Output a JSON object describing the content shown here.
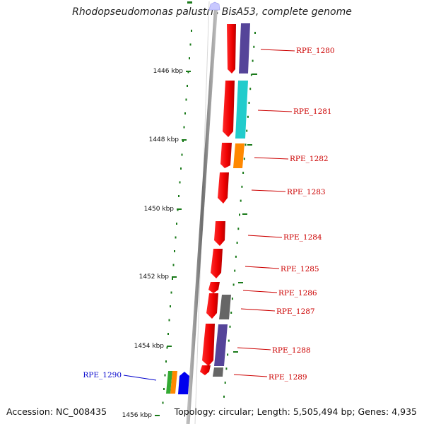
{
  "title": "Rhodopseudomonas palustris BisA53, complete genome",
  "accession": "Accession: NC_008435",
  "summary": "Topology: circular; Length: 5,505,494 bp; Genes: 4,935",
  "ticks": [
    {
      "label": "1446 kbp"
    },
    {
      "label": "1448 kbp"
    },
    {
      "label": "1450 kbp"
    },
    {
      "label": "1452 kbp"
    },
    {
      "label": "1454 kbp"
    },
    {
      "label": "1456 kbp"
    }
  ],
  "genes": [
    {
      "name": "RPE_1280",
      "color": "#cc0000"
    },
    {
      "name": "RPE_1281",
      "color": "#cc0000"
    },
    {
      "name": "RPE_1282",
      "color": "#cc0000"
    },
    {
      "name": "RPE_1283",
      "color": "#cc0000"
    },
    {
      "name": "RPE_1284",
      "color": "#cc0000"
    },
    {
      "name": "RPE_1285",
      "color": "#cc0000"
    },
    {
      "name": "RPE_1286",
      "color": "#cc0000"
    },
    {
      "name": "RPE_1287",
      "color": "#cc0000"
    },
    {
      "name": "RPE_1288",
      "color": "#cc0000"
    },
    {
      "name": "RPE_1289",
      "color": "#cc0000"
    },
    {
      "name": "RPE_1290",
      "color": "#0000cc"
    }
  ],
  "colors": {
    "cds": "#ff0000",
    "tick": "#1a7a1a",
    "backbone": "#888888",
    "cog_purple": "#554499",
    "cog_cyan": "#22cccc",
    "cog_orange": "#ff8800",
    "cog_gray": "#666666",
    "cog_green": "#33aa33",
    "cog_blue": "#0000ee"
  }
}
